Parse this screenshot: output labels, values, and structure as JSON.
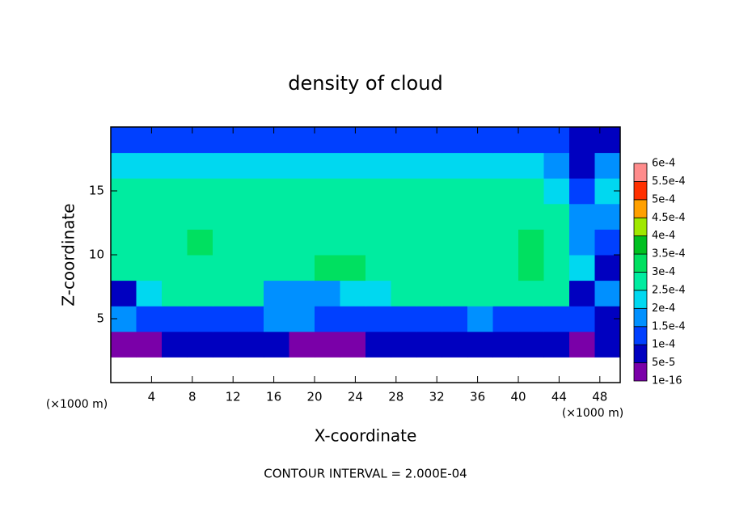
{
  "chart_data": {
    "type": "heatmap",
    "title": "density of cloud",
    "x_label": "X-coordinate",
    "y_label": "Z-coordinate",
    "x_unit": "(×1000 m)",
    "y_unit": "(×1000 m)",
    "footer": "CONTOUR INTERVAL = 2.000E-04",
    "xlim": [
      0,
      50
    ],
    "ylim": [
      0,
      20
    ],
    "xticks": [
      4,
      8,
      12,
      16,
      20,
      24,
      28,
      32,
      36,
      40,
      44,
      48
    ],
    "yticks": [
      5,
      10,
      15
    ],
    "x": [
      1.25,
      3.75,
      6.25,
      8.75,
      11.25,
      13.75,
      16.25,
      18.75,
      21.25,
      23.75,
      26.25,
      28.75,
      31.25,
      33.75,
      36.25,
      38.75,
      41.25,
      43.75,
      46.25,
      48.75
    ],
    "y": [
      1,
      3,
      5,
      7,
      9,
      11,
      13,
      15,
      17,
      19
    ],
    "z": [
      [
        null,
        null,
        null,
        null,
        null,
        null,
        null,
        null,
        null,
        null,
        null,
        null,
        null,
        null,
        null,
        null,
        null,
        null,
        null,
        null
      ],
      [
        3e-05,
        4e-05,
        6e-05,
        6e-05,
        5e-05,
        7e-05,
        6e-05,
        4e-05,
        3e-05,
        4e-05,
        5e-05,
        6e-05,
        5e-05,
        6e-05,
        5e-05,
        6e-05,
        5e-05,
        7e-05,
        4e-05,
        5e-05
      ],
      [
        0.00018,
        0.00012,
        0.00011,
        0.00012,
        0.00013,
        0.00014,
        0.00016,
        0.00015,
        0.00012,
        0.00013,
        0.00012,
        0.00013,
        0.00014,
        0.00013,
        0.00015,
        0.00013,
        0.00012,
        0.0001,
        0.00011,
        9e-05
      ],
      [
        9e-05,
        0.00024,
        0.00026,
        0.00026,
        0.00027,
        0.00026,
        0.00018,
        0.00015,
        0.00017,
        0.0002,
        0.00024,
        0.00026,
        0.00027,
        0.00027,
        0.00026,
        0.00027,
        0.00026,
        0.00025,
        7e-05,
        0.00016
      ],
      [
        0.00027,
        0.00028,
        0.00029,
        0.00029,
        0.00029,
        0.00029,
        0.00028,
        0.00029,
        0.0003,
        0.0003,
        0.00029,
        0.00029,
        0.00029,
        0.00029,
        0.00029,
        0.00029,
        0.0003,
        0.00029,
        0.00023,
        8e-05
      ],
      [
        0.00028,
        0.00029,
        0.00029,
        0.0003,
        0.00029,
        0.00029,
        0.00029,
        0.00029,
        0.00029,
        0.00029,
        0.00029,
        0.00028,
        0.00029,
        0.00029,
        0.00029,
        0.00029,
        0.0003,
        0.00028,
        0.00018,
        0.00013
      ],
      [
        0.00027,
        0.00028,
        0.00028,
        0.00028,
        0.00028,
        0.00028,
        0.00028,
        0.00028,
        0.00028,
        0.00028,
        0.00028,
        0.00028,
        0.00028,
        0.00028,
        0.00028,
        0.00028,
        0.00028,
        0.00026,
        0.00015,
        0.00019
      ],
      [
        0.00025,
        0.00026,
        0.00026,
        0.00026,
        0.00026,
        0.00026,
        0.00026,
        0.00026,
        0.00026,
        0.00026,
        0.00026,
        0.00026,
        0.00026,
        0.00026,
        0.00026,
        0.00026,
        0.00026,
        0.00024,
        0.00012,
        0.00022
      ],
      [
        0.0002,
        0.00022,
        0.00022,
        0.00022,
        0.00022,
        0.00022,
        0.00022,
        0.00022,
        0.00022,
        0.00022,
        0.00022,
        0.00022,
        0.00022,
        0.00022,
        0.00022,
        0.00022,
        0.00022,
        0.00018,
        9e-05,
        0.00017
      ],
      [
        0.00012,
        0.00013,
        0.00014,
        0.00014,
        0.00014,
        0.00014,
        0.00014,
        0.00014,
        0.00014,
        0.00014,
        0.00014,
        0.00014,
        0.00014,
        0.00014,
        0.00014,
        0.00014,
        0.00013,
        0.00011,
        6e-05,
        9e-05
      ]
    ],
    "levels": [
      {
        "value": 1e-16,
        "label": "1e-16"
      },
      {
        "value": 5e-05,
        "label": "5e-5"
      },
      {
        "value": 0.0001,
        "label": "1e-4"
      },
      {
        "value": 0.00015,
        "label": "1.5e-4"
      },
      {
        "value": 0.0002,
        "label": "2e-4"
      },
      {
        "value": 0.00025,
        "label": "2.5e-4"
      },
      {
        "value": 0.0003,
        "label": "3e-4"
      },
      {
        "value": 0.00035,
        "label": "3.5e-4"
      },
      {
        "value": 0.0004,
        "label": "4e-4"
      },
      {
        "value": 0.00045,
        "label": "4.5e-4"
      },
      {
        "value": 0.0005,
        "label": "5e-4"
      },
      {
        "value": 0.00055,
        "label": "5.5e-4"
      },
      {
        "value": 0.0006,
        "label": "6e-4"
      }
    ],
    "colors": [
      "#7a00a8",
      "#0000c0",
      "#0040ff",
      "#0090ff",
      "#00d8f0",
      "#00eca0",
      "#00e060",
      "#00c020",
      "#a0e800",
      "#ffa000",
      "#ff3000",
      "#ff8c8c"
    ]
  }
}
